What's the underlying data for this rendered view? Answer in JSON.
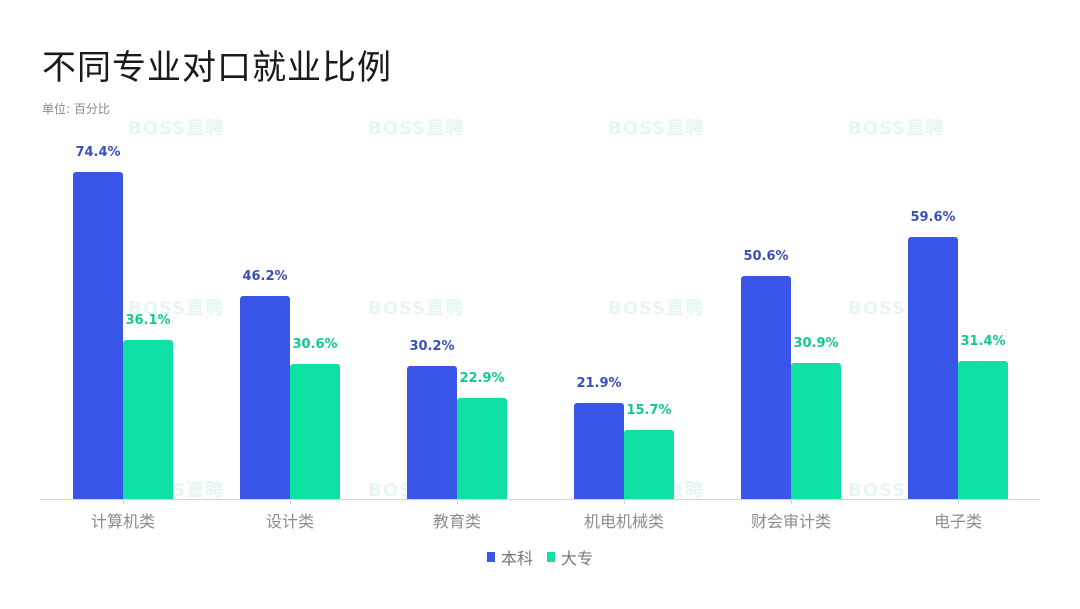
{
  "title": "不同专业对口就业比例",
  "unit_label": "单位: 百分比",
  "watermark": "BOSS直聘",
  "colors": {
    "benke": "#3a56e8",
    "dazhuan": "#0fe0a3",
    "benke_label": "#3b4fb8",
    "dazhuan_label": "#12c98f"
  },
  "legend": [
    {
      "name": "本科",
      "color": "#3a56e8"
    },
    {
      "name": "大专",
      "color": "#0fe0a3"
    }
  ],
  "chart_data": {
    "type": "bar",
    "title": "不同专业对口就业比例",
    "subtitle": "单位: 百分比",
    "xlabel": "",
    "ylabel": "",
    "categories": [
      "计算机类",
      "设计类",
      "教育类",
      "机电机械类",
      "财会审计类",
      "电子类"
    ],
    "series": [
      {
        "name": "本科",
        "values": [
          74.4,
          46.2,
          30.2,
          21.9,
          50.6,
          59.6
        ]
      },
      {
        "name": "大专",
        "values": [
          36.1,
          30.6,
          22.9,
          15.7,
          30.9,
          31.4
        ]
      }
    ],
    "value_labels": {
      "本科": [
        "74.4%",
        "46.2%",
        "30.2%",
        "21.9%",
        "50.6%",
        "59.6%"
      ],
      "大专": [
        "36.1%",
        "30.6%",
        "22.9%",
        "15.7%",
        "30.9%",
        "31.4%"
      ]
    },
    "ylim": [
      0,
      80
    ],
    "grid": false,
    "legend_position": "bottom"
  }
}
